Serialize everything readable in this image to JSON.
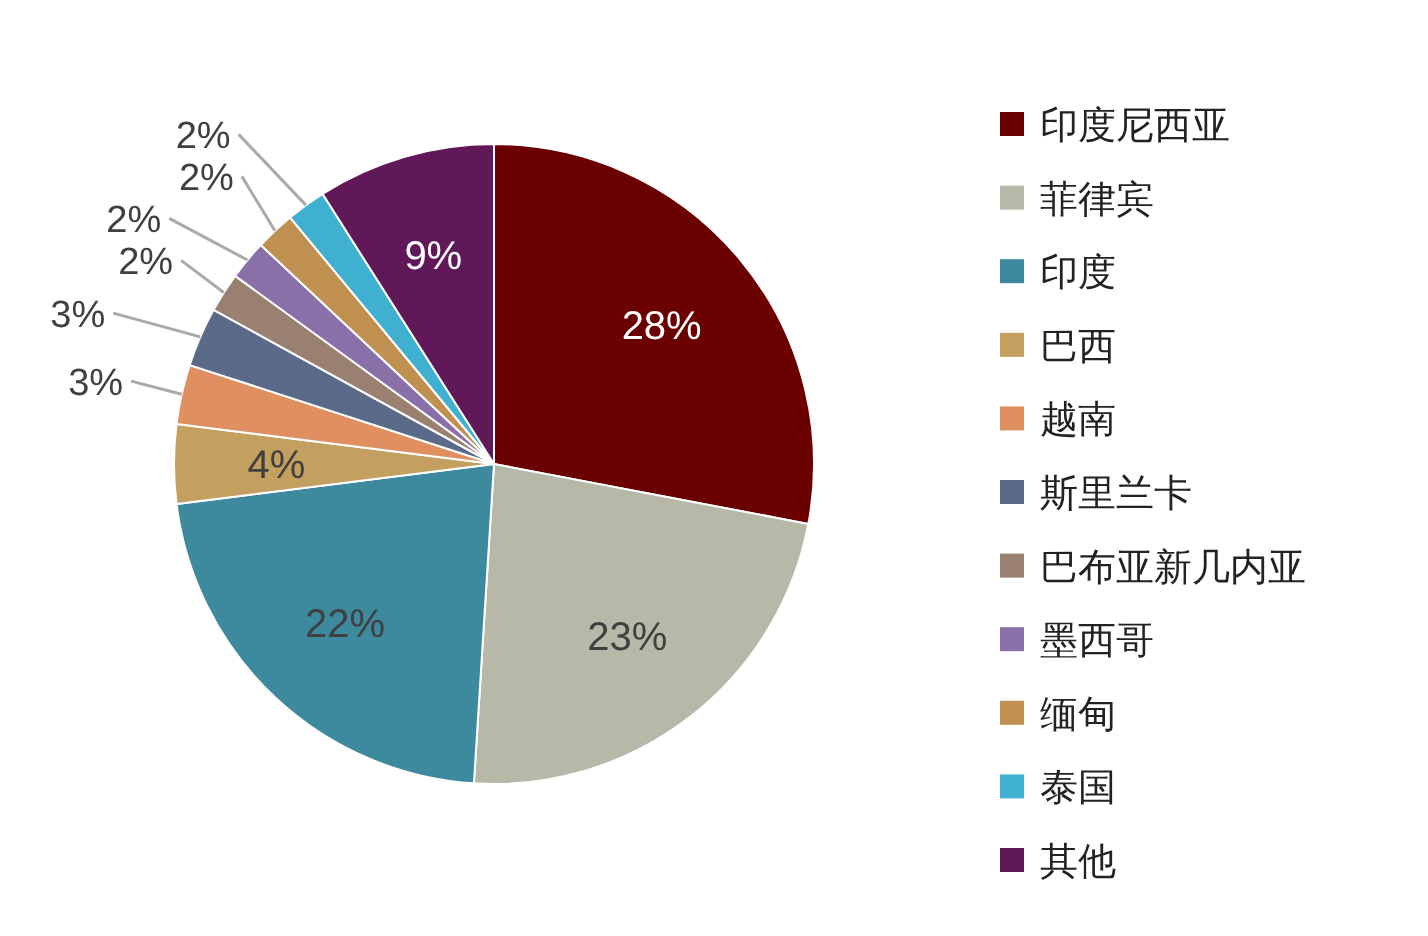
{
  "chart_data": {
    "type": "pie",
    "categories": [
      "印度尼西亚",
      "菲律宾",
      "印度",
      "巴西",
      "越南",
      "斯里兰卡",
      "巴布亚新几内亚",
      "墨西哥",
      "缅甸",
      "泰国",
      "其他"
    ],
    "values": [
      28,
      23,
      22,
      4,
      3,
      3,
      2,
      2,
      2,
      2,
      9
    ],
    "colors": [
      "#6b0000",
      "#b8b8a8",
      "#3d8a9e",
      "#c4a060",
      "#e09060",
      "#5a6a88",
      "#9a8070",
      "#8a70a8",
      "#c09050",
      "#40b0d0",
      "#601858"
    ],
    "value_labels": [
      "28%",
      "23%",
      "22%",
      "4%",
      "3%",
      "3%",
      "2%",
      "2%",
      "2%",
      "2%",
      "9%"
    ],
    "legend": "right"
  }
}
